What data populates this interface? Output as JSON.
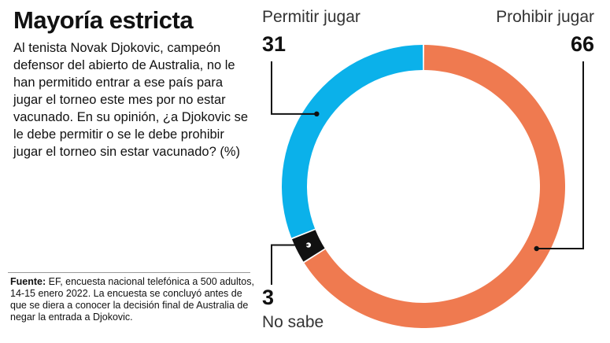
{
  "header": {
    "title": "Mayoría estricta",
    "question": "Al tenista Novak Djokovic, campeón defensor del abierto de Australia, no le han permitido entrar a ese país para jugar el torneo este mes por no estar vacunado. En su opinión, ¿a Djokovic se le debe permitir o se le debe prohibir jugar el torneo sin estar vacunado? (%)"
  },
  "footer": {
    "source_label": "Fuente:",
    "source_text": "EF, encuesta nacional telefónica a 500 adultos, 14-15 enero 2022. La encuesta se concluyó antes de que se diera a conocer la decisión final de Australia de negar la entrada a Djokovic."
  },
  "chart_data": {
    "type": "pie",
    "donut": true,
    "categories": [
      "Permitir jugar",
      "Prohibir jugar",
      "No sabe"
    ],
    "values": [
      31,
      66,
      3
    ],
    "value_labels": [
      "31",
      "66",
      "3"
    ],
    "colors": [
      "#0bb1ea",
      "#ef7a50",
      "#111111"
    ],
    "title": "Mayoría estricta"
  }
}
